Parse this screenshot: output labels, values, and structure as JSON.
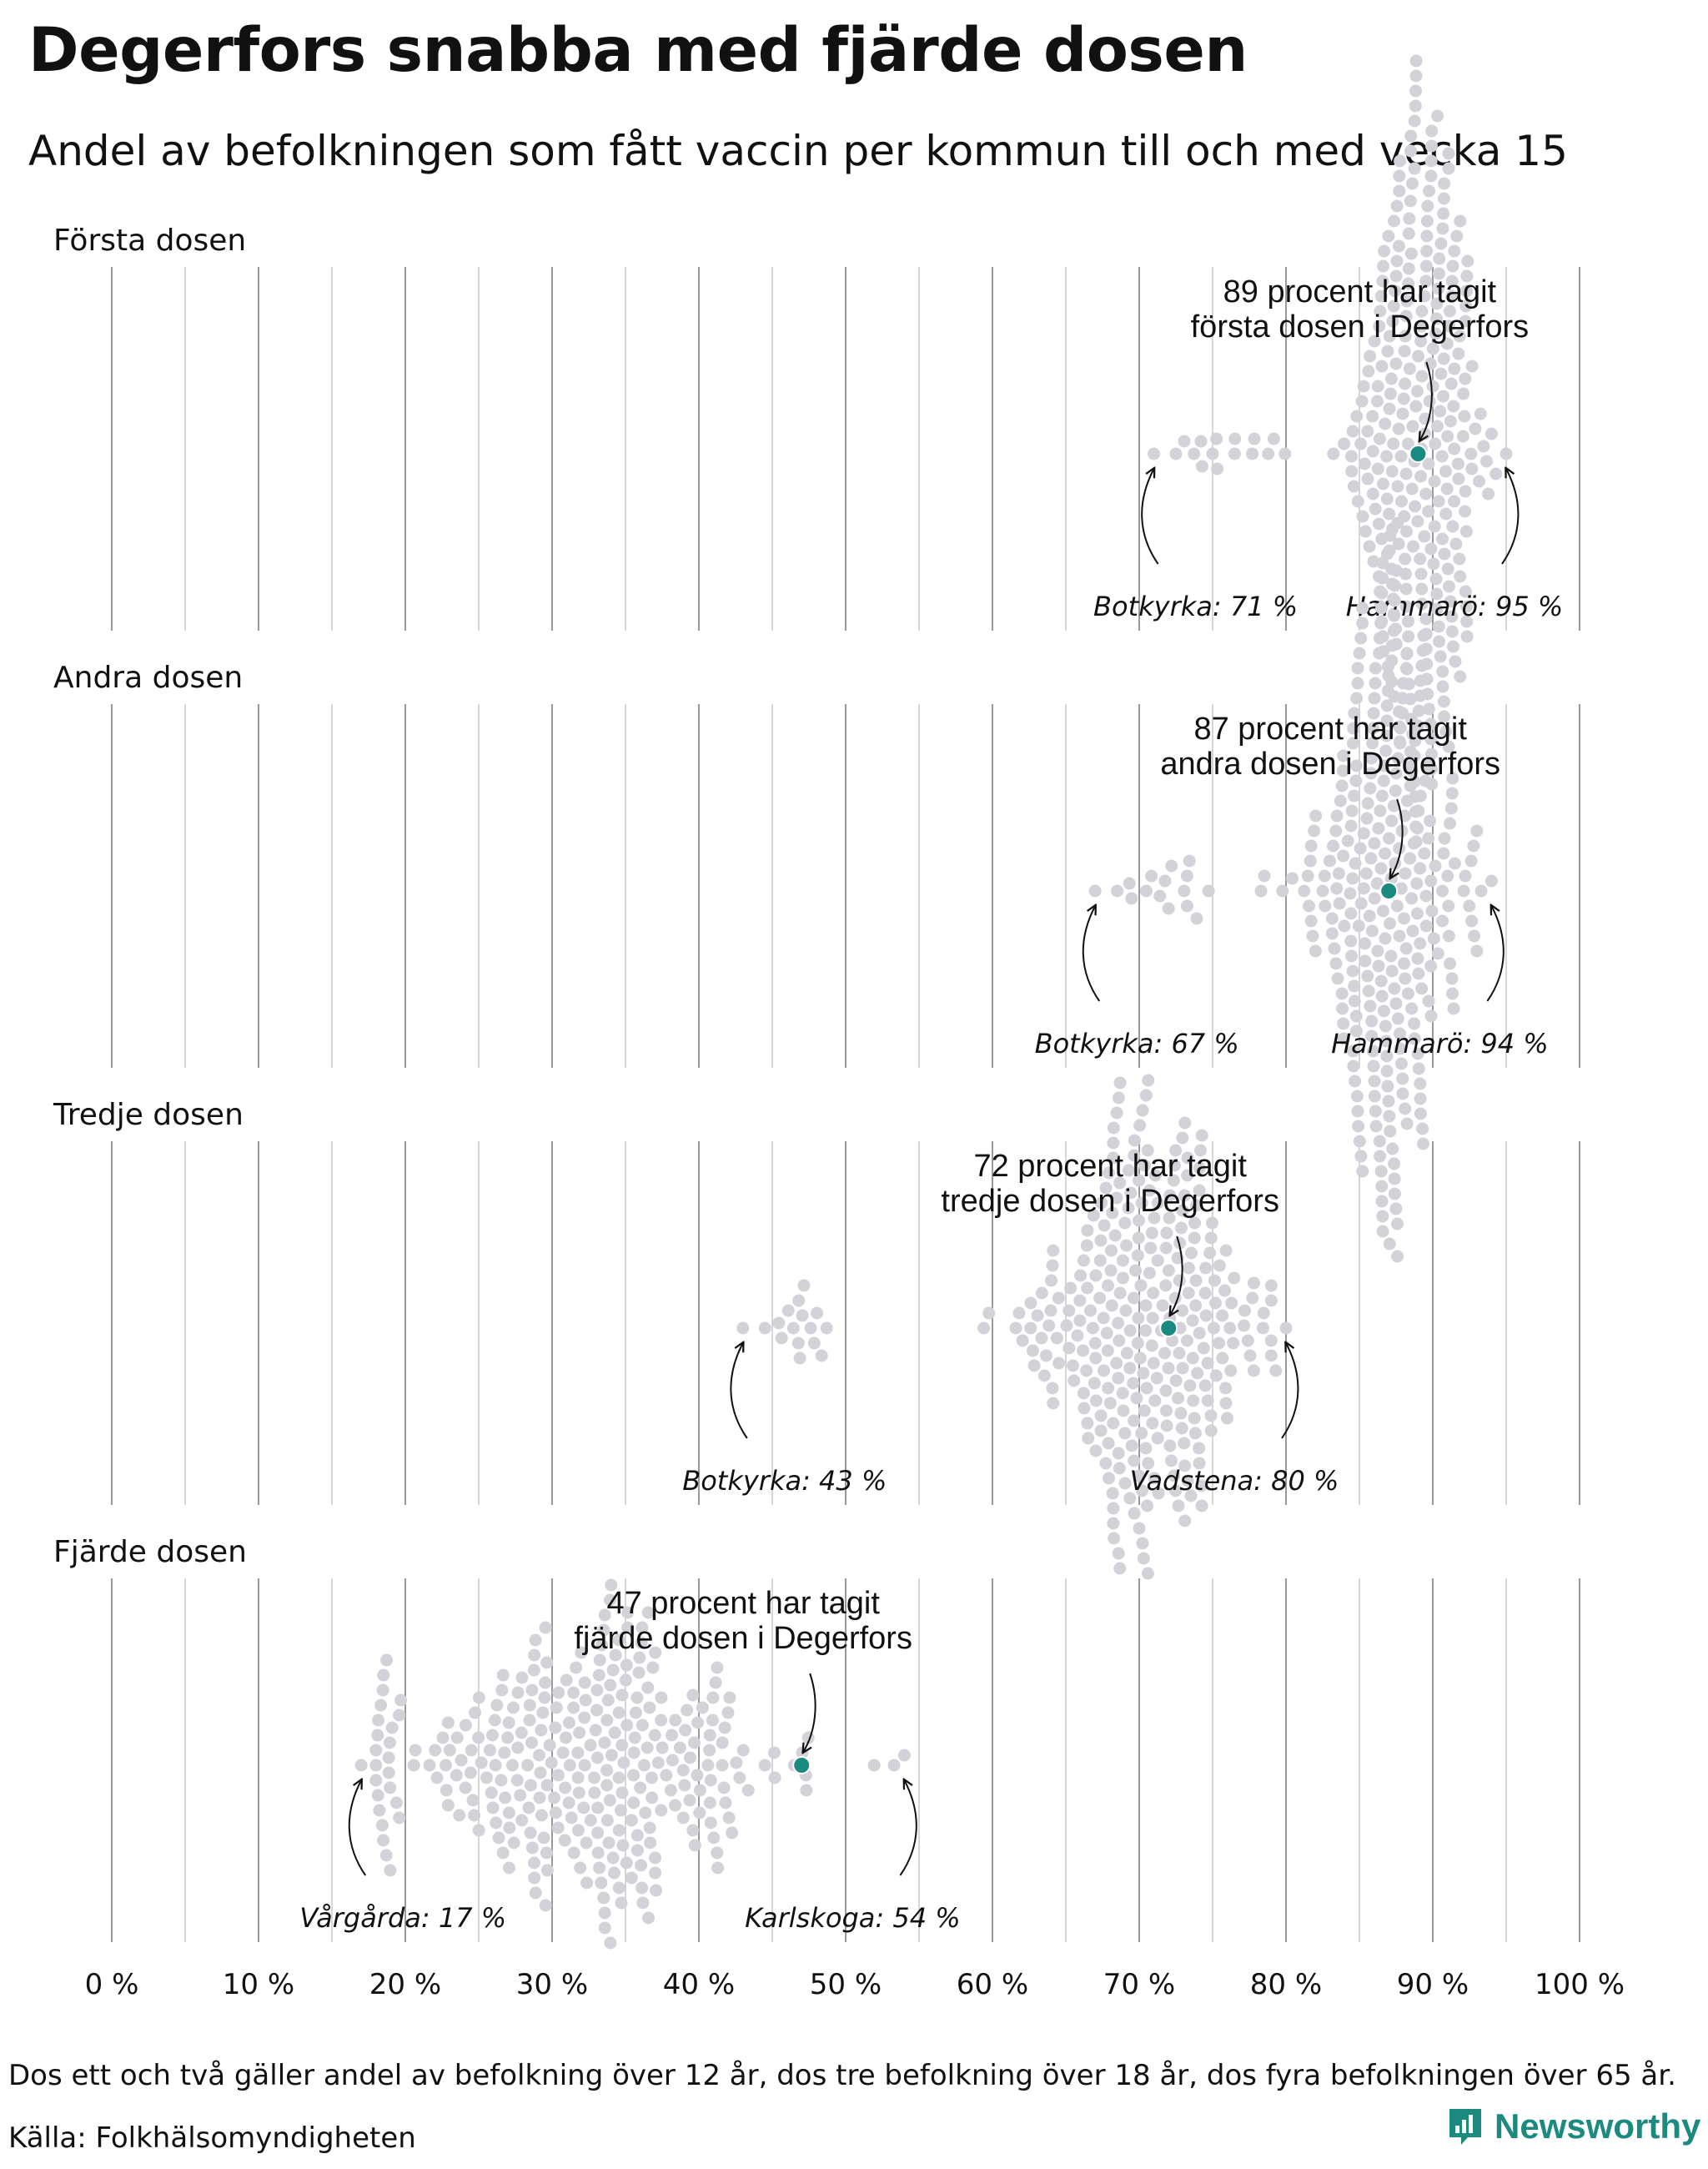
{
  "header": {
    "title": "Degerfors snabba med fjärde dosen",
    "subtitle": "Andel av befolkningen som fått vaccin per kommun till och med vecka 15"
  },
  "footer": {
    "note": "Dos ett och två gäller andel av befolkning över 12 år, dos tre befolkning över 18 år, dos fyra befolkningen över 65 år.",
    "source": "Källa: Folkhälsomyndigheten",
    "brand": "Newsworthy"
  },
  "colors": {
    "dot": "#d3d2d9",
    "highlight": "#1a8a80",
    "grid": "#9a9a9a"
  },
  "chart_data": {
    "type": "scatter",
    "subtype": "beeswarm",
    "title": "Degerfors snabba med fjärde dosen",
    "xlabel": "",
    "ylabel": "",
    "xlim": [
      0,
      100
    ],
    "x_ticks": [
      0,
      10,
      20,
      30,
      40,
      50,
      60,
      70,
      80,
      90,
      100
    ],
    "x_tick_labels": [
      "0 %",
      "10 %",
      "20 %",
      "30 %",
      "40 %",
      "50 %",
      "60 %",
      "70 %",
      "80 %",
      "90 %",
      "100 %"
    ],
    "grid": true,
    "highlight_municipality": "Degerfors",
    "panels": [
      {
        "label": "Första dosen",
        "highlight_value": 89,
        "callout": [
          "89 procent har tagit",
          "första dosen i Degerfors"
        ],
        "min": {
          "name": "Botkyrka",
          "value": 71,
          "label": "Botkyrka: 71 %"
        },
        "max": {
          "name": "Hammarö",
          "value": 95,
          "label": "Hammarö: 95 %"
        },
        "center": 89,
        "spread": 2.2,
        "count": 288,
        "bulk_range": [
          80,
          94
        ]
      },
      {
        "label": "Andra dosen",
        "highlight_value": 87,
        "callout": [
          "87 procent har tagit",
          "andra dosen i Degerfors"
        ],
        "min": {
          "name": "Botkyrka",
          "value": 67,
          "label": "Botkyrka: 67 %"
        },
        "max": {
          "name": "Hammarö",
          "value": 94,
          "label": "Hammarö: 94 %"
        },
        "center": 87,
        "spread": 2.5,
        "count": 288,
        "bulk_range": [
          75,
          93
        ]
      },
      {
        "label": "Tredje dosen",
        "highlight_value": 72,
        "callout": [
          "72 procent har tagit",
          "tredje dosen i Degerfors"
        ],
        "min": {
          "name": "Botkyrka",
          "value": 43,
          "label": "Botkyrka: 43 %"
        },
        "max": {
          "name": "Vadstena",
          "value": 80,
          "label": "Vadstena: 80 %"
        },
        "center": 70,
        "spread": 4.0,
        "count": 288,
        "bulk_range": [
          49,
          79
        ]
      },
      {
        "label": "Fjärde dosen",
        "highlight_value": 47,
        "callout": [
          "47 procent har tagit",
          "fjärde dosen i Degerfors"
        ],
        "min": {
          "name": "Vårgårda",
          "value": 17,
          "label": "Vårgårda: 17 %"
        },
        "max": {
          "name": "Karlskoga",
          "value": 54,
          "label": "Karlskoga: 54 %"
        },
        "center": 33,
        "spread": 6.0,
        "count": 288,
        "bulk_range": [
          18,
          53
        ]
      }
    ]
  }
}
